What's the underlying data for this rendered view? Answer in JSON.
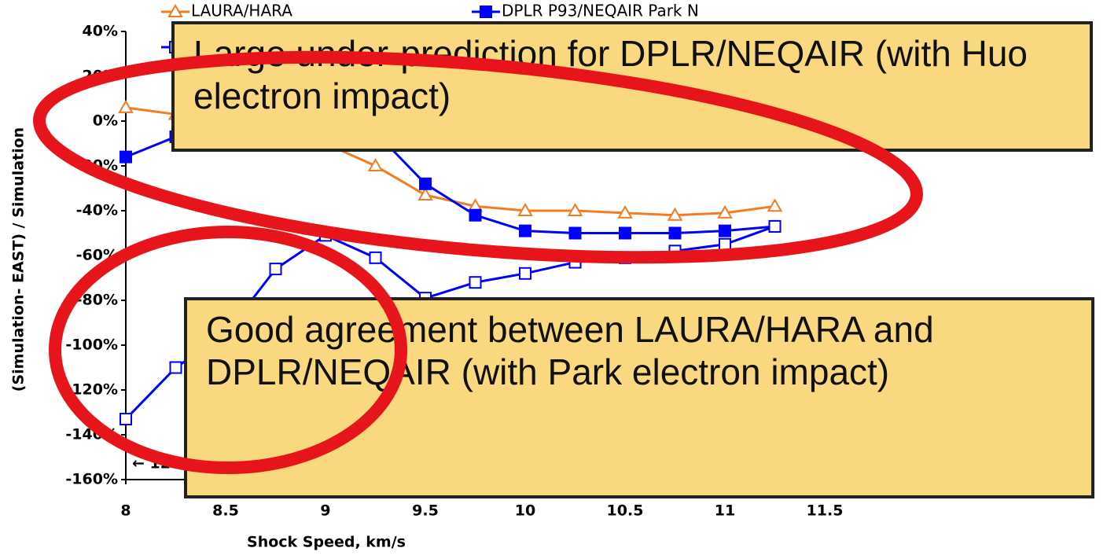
{
  "chart_data": {
    "type": "line",
    "xlabel": "Shock Speed, km/s",
    "ylabel": "(Simulation- EAST) / Simulation",
    "x": [
      8,
      8.25,
      8.5,
      8.75,
      9,
      9.25,
      9.5,
      9.75,
      10,
      10.25,
      10.5,
      10.75,
      11,
      11.25
    ],
    "series": [
      {
        "name": "LAURA/HARA",
        "color": "#f47c20",
        "marker": "triangle-open",
        "values": [
          6,
          3,
          0,
          -5,
          -10,
          -20,
          -33,
          -38,
          -40,
          -40,
          -41,
          -42,
          -41,
          -38
        ]
      },
      {
        "name": "DPLR P93/NEQAIR Park N",
        "color": "#0000ff",
        "marker": "square",
        "values": [
          -16,
          -7,
          0,
          5,
          5,
          -5,
          -28,
          -42,
          -49,
          -50,
          -50,
          -50,
          -49,
          -47
        ]
      },
      {
        "color": "#0000ff",
        "marker": "square-open",
        "values": [
          -133,
          -110,
          -95,
          -66,
          -51,
          -61,
          -79,
          -72,
          -68,
          -63,
          -61,
          -58,
          -55,
          -47
        ]
      }
    ],
    "xlim": [
      8,
      12.5
    ],
    "xticks": [
      8,
      8.5,
      9,
      9.5,
      10,
      10.5,
      11,
      11.5
    ],
    "ylim": [
      -160,
      40
    ],
    "yticks": [
      {
        "value": 40,
        "label": "40%"
      },
      {
        "value": 20,
        "label": "20%"
      },
      {
        "value": 0,
        "label": "0%"
      },
      {
        "value": -20,
        "label": "-20%"
      },
      {
        "value": -40,
        "label": "-40%"
      },
      {
        "value": -60,
        "label": "-60%"
      },
      {
        "value": -80,
        "label": "-80%"
      },
      {
        "value": -100,
        "label": "-100%"
      },
      {
        "value": -120,
        "label": "-120%"
      },
      {
        "value": -140,
        "label": "-140%"
      },
      {
        "value": -160,
        "label": "-160%"
      }
    ],
    "annotations": [
      {
        "text": "← 12"
      },
      {
        "text": "Large under-prediction for DPLR/NEQAIR (with Huo electron impact)"
      },
      {
        "text": "Good agreement between LAURA/HARA and DPLR/NEQAIR (with Park electron impact)"
      }
    ]
  }
}
